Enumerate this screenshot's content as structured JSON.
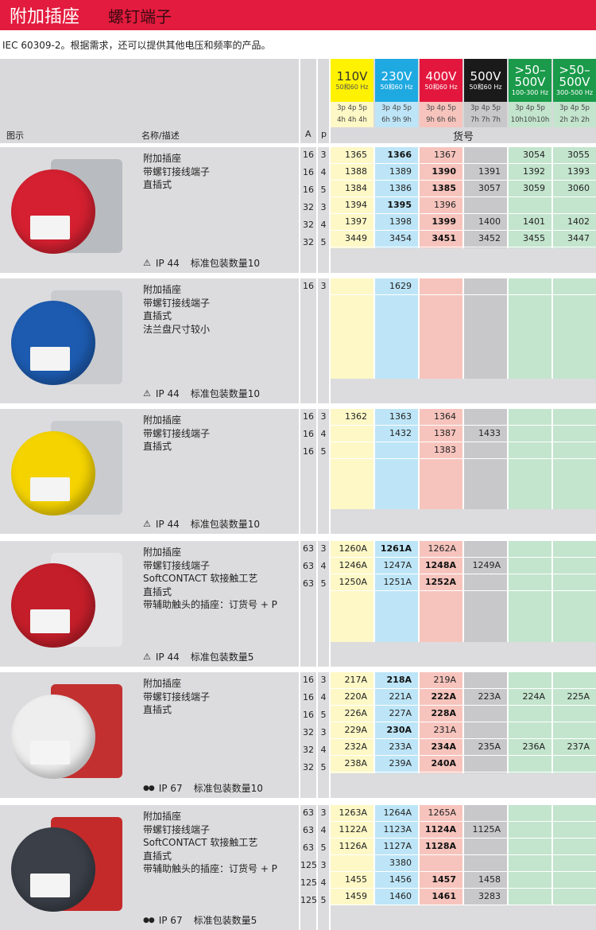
{
  "header": {
    "title": "附加插座",
    "subtitle": "螺钉端子"
  },
  "description": "IEC 60309-2。根据需求，还可以提供其他电压和频率的产品。",
  "table_header": {
    "col_image": "图示",
    "col_name": "名称/描述",
    "col_a": "A",
    "col_p": "p",
    "part_no": "货号",
    "voltages": [
      {
        "v": "110V",
        "hz": "50和60 Hz",
        "poles": "3p 4p 5p",
        "hours": "4h 4h 4h",
        "color": "#fff200",
        "light": "#fdf8c6",
        "text": "#333",
        "hzcolor": "#555"
      },
      {
        "v": "230V",
        "hz": "50和60 Hz",
        "poles": "3p 4p 5p",
        "hours": "6h 9h 9h",
        "color": "#1fa9e1",
        "light": "#bde5f7",
        "text": "#fff",
        "hzcolor": "#fff"
      },
      {
        "v": "400V",
        "hz": "50和60 Hz",
        "poles": "3p 4p 5p",
        "hours": "9h 6h 6h",
        "color": "#e3173e",
        "light": "#f6c4bd",
        "text": "#fff",
        "hzcolor": "#fff"
      },
      {
        "v": "500V",
        "hz": "50和60 Hz",
        "poles": "3p 4p 5p",
        "hours": "7h 7h 7h",
        "color": "#1a1a1a",
        "light": "#c8c8ca",
        "text": "#fff",
        "hzcolor": "#fff"
      },
      {
        "v": ">50–500V",
        "hz": "100-300 Hz",
        "poles": "3p 4p 5p",
        "hours": "10h10h10h",
        "color": "#1a9a4a",
        "light": "#c3e4cd",
        "text": "#fff",
        "hzcolor": "#fff"
      },
      {
        "v": ">50–500V",
        "hz": "300-500 Hz",
        "poles": "3p 4p 5p",
        "hours": "2h 2h 2h",
        "color": "#1a9a4a",
        "light": "#c3e4cd",
        "text": "#fff",
        "hzcolor": "#fff"
      }
    ]
  },
  "sections": [
    {
      "image": "red-socket",
      "disc": "#d42030",
      "plate": "#b8bbbf",
      "lines": [
        "附加插座",
        "带螺钉接线端子",
        "直插式"
      ],
      "ip_icon": "warning-triangle-icon",
      "ip": "IP 44",
      "pack": "标准包装数量10",
      "rows": [
        {
          "A": "16",
          "p": "3",
          "cells": [
            "1365",
            "1366",
            "1367",
            "",
            "3054",
            "3055"
          ],
          "bold": 1
        },
        {
          "A": "16",
          "p": "4",
          "cells": [
            "1388",
            "1389",
            "1390",
            "1391",
            "1392",
            "1393"
          ],
          "bold": 2
        },
        {
          "A": "16",
          "p": "5",
          "cells": [
            "1384",
            "1386",
            "1385",
            "3057",
            "3059",
            "3060"
          ],
          "bold": 2
        },
        {
          "A": "32",
          "p": "3",
          "cells": [
            "1394",
            "1395",
            "1396",
            "",
            "",
            ""
          ],
          "bold": 1
        },
        {
          "A": "32",
          "p": "4",
          "cells": [
            "1397",
            "1398",
            "1399",
            "1400",
            "1401",
            "1402"
          ],
          "bold": 2
        },
        {
          "A": "32",
          "p": "5",
          "cells": [
            "3449",
            "3454",
            "3451",
            "3452",
            "3455",
            "3447"
          ],
          "bold": 2
        }
      ]
    },
    {
      "image": "blue-socket",
      "disc": "#1d5bb0",
      "plate": "#c9cbce",
      "lines": [
        "附加插座",
        "带螺钉接线端子",
        "直插式",
        "法兰盘尺寸较小"
      ],
      "ip_icon": "warning-triangle-icon",
      "ip": "IP 44",
      "pack": "标准包装数量10",
      "rows": [
        {
          "A": "16",
          "p": "3",
          "cells": [
            "",
            "1629",
            "",
            "",
            "",
            ""
          ],
          "bold": -1
        }
      ]
    },
    {
      "image": "yellow-socket",
      "disc": "#f4d300",
      "plate": "#c9cbce",
      "lines": [
        "附加插座",
        "带螺钉接线端子",
        "直插式"
      ],
      "ip_icon": "warning-triangle-icon",
      "ip": "IP 44",
      "pack": "标准包装数量10",
      "rows": [
        {
          "A": "16",
          "p": "3",
          "cells": [
            "1362",
            "1363",
            "1364",
            "",
            "",
            ""
          ],
          "bold": -1
        },
        {
          "A": "16",
          "p": "4",
          "cells": [
            "",
            "1432",
            "1387",
            "1433",
            "",
            ""
          ],
          "bold": -1
        },
        {
          "A": "16",
          "p": "5",
          "cells": [
            "",
            "",
            "1383",
            "",
            "",
            ""
          ],
          "bold": -1
        }
      ]
    },
    {
      "image": "red-socket-63a",
      "disc": "#c41e2a",
      "plate": "#e6e6e8",
      "lines": [
        "附加插座",
        "带螺钉接线端子",
        "SoftCONTACT 软接触工艺",
        "直插式",
        "带辅助触头的插座：订货号 + P"
      ],
      "ip_icon": "warning-triangle-icon",
      "ip": "IP 44",
      "pack": "标准包装数量5",
      "rows": [
        {
          "A": "63",
          "p": "3",
          "cells": [
            "1260A",
            "1261A",
            "1262A",
            "",
            "",
            ""
          ],
          "bold": 1
        },
        {
          "A": "63",
          "p": "4",
          "cells": [
            "1246A",
            "1247A",
            "1248A",
            "1249A",
            "",
            ""
          ],
          "bold": 2
        },
        {
          "A": "63",
          "p": "5",
          "cells": [
            "1250A",
            "1251A",
            "1252A",
            "",
            "",
            ""
          ],
          "bold": 2
        }
      ]
    },
    {
      "image": "white-red-socket-ip67",
      "disc": "#eeeeee",
      "plate": "#c23030",
      "lines": [
        "附加插座",
        "带螺钉接线端子",
        "直插式"
      ],
      "ip_icon": "water-drops-icon",
      "ip": "IP 67",
      "pack": "标准包装数量10",
      "rows": [
        {
          "A": "16",
          "p": "3",
          "cells": [
            "217A",
            "218A",
            "219A",
            "",
            "",
            ""
          ],
          "bold": 1
        },
        {
          "A": "16",
          "p": "4",
          "cells": [
            "220A",
            "221A",
            "222A",
            "223A",
            "224A",
            "225A"
          ],
          "bold": 2
        },
        {
          "A": "16",
          "p": "5",
          "cells": [
            "226A",
            "227A",
            "228A",
            "",
            "",
            ""
          ],
          "bold": 2
        },
        {
          "A": "32",
          "p": "3",
          "cells": [
            "229A",
            "230A",
            "231A",
            "",
            "",
            ""
          ],
          "bold": 1
        },
        {
          "A": "32",
          "p": "4",
          "cells": [
            "232A",
            "233A",
            "234A",
            "235A",
            "236A",
            "237A"
          ],
          "bold": 2
        },
        {
          "A": "32",
          "p": "5",
          "cells": [
            "238A",
            "239A",
            "240A",
            "",
            "",
            ""
          ],
          "bold": 2
        }
      ]
    },
    {
      "image": "dark-red-socket-ip67",
      "disc": "#3a3f48",
      "plate": "#c42a2a",
      "lines": [
        "附加插座",
        "带螺钉接线端子",
        "SoftCONTACT 软接触工艺",
        "直插式",
        "带辅助触头的插座：订货号 + P"
      ],
      "ip_icon": "water-drops-icon",
      "ip": "IP 67",
      "pack": "标准包装数量5",
      "rows": [
        {
          "A": "63",
          "p": "3",
          "cells": [
            "1263A",
            "1264A",
            "1265A",
            "",
            "",
            ""
          ],
          "bold": -1
        },
        {
          "A": "63",
          "p": "4",
          "cells": [
            "1122A",
            "1123A",
            "1124A",
            "1125A",
            "",
            ""
          ],
          "bold": 2
        },
        {
          "A": "63",
          "p": "5",
          "cells": [
            "1126A",
            "1127A",
            "1128A",
            "",
            "",
            ""
          ],
          "bold": 2
        },
        {
          "A": "125",
          "p": "3",
          "cells": [
            "",
            "3380",
            "",
            "",
            "",
            ""
          ],
          "bold": -1
        },
        {
          "A": "125",
          "p": "4",
          "cells": [
            "1455",
            "1456",
            "1457",
            "1458",
            "",
            ""
          ],
          "bold": 2
        },
        {
          "A": "125",
          "p": "5",
          "cells": [
            "1459",
            "1460",
            "1461",
            "3283",
            "",
            ""
          ],
          "bold": 2
        }
      ]
    }
  ]
}
